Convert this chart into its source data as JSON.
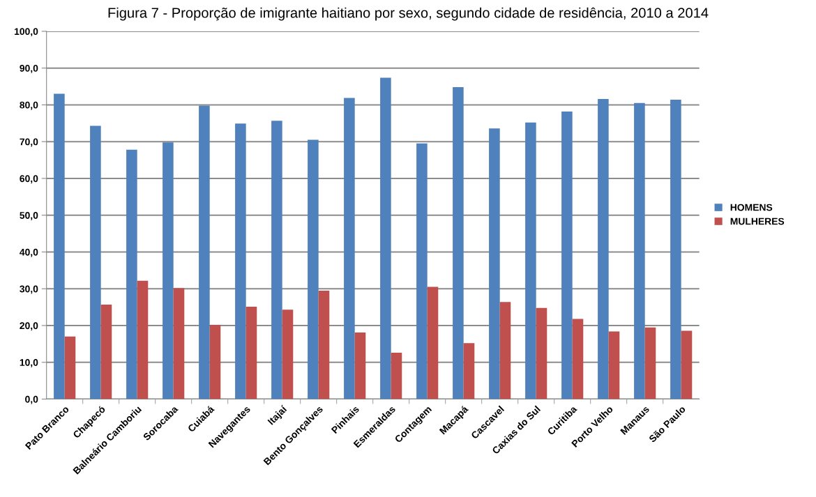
{
  "chart_data": {
    "type": "bar",
    "title": "Figura 7 - Proporção de imigrante haitiano por sexo, segundo cidade de residência, 2010 a 2014",
    "categories": [
      "Pato Branco",
      "Chapecó",
      "Balneário Camboriu",
      "Sorocaba",
      "Cuiabá",
      "Navegantes",
      "Itajaí",
      "Bento Gonçalves",
      "Pinhais",
      "Esmeraldas",
      "Contagem",
      "Macapá",
      "Cascavel",
      "Caxias do Sul",
      "Curitiba",
      "Porto Velho",
      "Manaus",
      "São Paulo"
    ],
    "series": [
      {
        "name": "HOMENS",
        "color": "#4f81bd",
        "values": [
          83.0,
          74.3,
          67.8,
          69.8,
          79.8,
          74.9,
          75.7,
          70.5,
          81.9,
          87.4,
          69.5,
          84.8,
          73.6,
          75.2,
          78.2,
          81.6,
          80.5,
          81.4
        ]
      },
      {
        "name": "MULHERES",
        "color": "#c0504d",
        "values": [
          17.0,
          25.7,
          32.2,
          30.2,
          20.2,
          25.1,
          24.3,
          29.5,
          18.1,
          12.6,
          30.5,
          15.2,
          26.4,
          24.8,
          21.8,
          18.4,
          19.5,
          18.6
        ]
      }
    ],
    "ylim": [
      0,
      100
    ],
    "yticks": [
      {
        "value": 0,
        "label": "0,0"
      },
      {
        "value": 10,
        "label": "10,0"
      },
      {
        "value": 20,
        "label": "20,0"
      },
      {
        "value": 30,
        "label": "30,0"
      },
      {
        "value": 40,
        "label": "40,0"
      },
      {
        "value": 50,
        "label": "50,0"
      },
      {
        "value": 60,
        "label": "60,0"
      },
      {
        "value": 70,
        "label": "70,0"
      },
      {
        "value": 80,
        "label": "80,0"
      },
      {
        "value": 90,
        "label": "90,0"
      },
      {
        "value": 100,
        "label": "100,0"
      }
    ],
    "grid": "y",
    "legend": "right"
  }
}
